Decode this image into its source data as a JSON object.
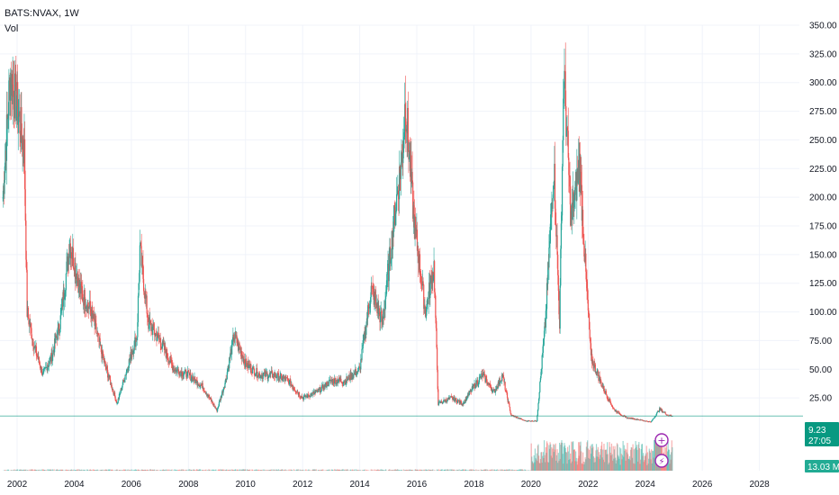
{
  "header": {
    "symbol_label": "BATS:NVAX, 1W",
    "indicator_label": "Vol"
  },
  "colors": {
    "up": "#26a69a",
    "down": "#ef5350",
    "price_badge": "#089981",
    "volume_badge": "#22ab94",
    "grid": "#f0f3fa",
    "marker": "#9c27b0"
  },
  "chart_data": {
    "type": "candlestick",
    "title": "",
    "xlabel": "",
    "ylabel": "",
    "x_ticks": [
      "2002",
      "2004",
      "2006",
      "2008",
      "2010",
      "2012",
      "2014",
      "2016",
      "2018",
      "2020",
      "2022",
      "2024",
      "2026",
      "2028"
    ],
    "y_ticks": [
      "350.00",
      "325.00",
      "300.00",
      "275.00",
      "250.00",
      "225.00",
      "200.00",
      "175.00",
      "150.00",
      "125.00",
      "100.00",
      "75.00",
      "50.00",
      "25.00"
    ],
    "ylim": [
      0,
      350
    ],
    "xlim": [
      2001.4,
      2029.4
    ],
    "grid": true,
    "series": [
      {
        "type": "price",
        "points": [
          [
            2001.5,
            200
          ],
          [
            2001.75,
            305
          ],
          [
            2002.0,
            280
          ],
          [
            2002.25,
            240
          ],
          [
            2002.35,
            100
          ],
          [
            2002.6,
            70
          ],
          [
            2002.9,
            45
          ],
          [
            2003.2,
            60
          ],
          [
            2003.5,
            90
          ],
          [
            2003.85,
            160
          ],
          [
            2004.2,
            120
          ],
          [
            2004.6,
            100
          ],
          [
            2005.0,
            60
          ],
          [
            2005.5,
            20
          ],
          [
            2005.9,
            55
          ],
          [
            2006.2,
            80
          ],
          [
            2006.3,
            155
          ],
          [
            2006.6,
            90
          ],
          [
            2007.0,
            75
          ],
          [
            2007.5,
            50
          ],
          [
            2008.0,
            45
          ],
          [
            2008.5,
            35
          ],
          [
            2009.0,
            14
          ],
          [
            2009.3,
            40
          ],
          [
            2009.6,
            80
          ],
          [
            2010.0,
            55
          ],
          [
            2010.5,
            45
          ],
          [
            2011.0,
            45
          ],
          [
            2011.5,
            40
          ],
          [
            2012.0,
            25
          ],
          [
            2012.5,
            30
          ],
          [
            2013.0,
            40
          ],
          [
            2013.5,
            40
          ],
          [
            2014.0,
            50
          ],
          [
            2014.4,
            120
          ],
          [
            2014.8,
            90
          ],
          [
            2015.2,
            180
          ],
          [
            2015.5,
            240
          ],
          [
            2015.6,
            285
          ],
          [
            2015.9,
            180
          ],
          [
            2016.3,
            100
          ],
          [
            2016.6,
            140
          ],
          [
            2016.75,
            20
          ],
          [
            2017.2,
            25
          ],
          [
            2017.6,
            20
          ],
          [
            2018.0,
            35
          ],
          [
            2018.3,
            45
          ],
          [
            2018.7,
            30
          ],
          [
            2019.0,
            45
          ],
          [
            2019.3,
            10
          ],
          [
            2019.8,
            5
          ],
          [
            2020.2,
            5
          ],
          [
            2020.5,
            90
          ],
          [
            2020.8,
            230
          ],
          [
            2021.0,
            90
          ],
          [
            2021.15,
            310
          ],
          [
            2021.4,
            180
          ],
          [
            2021.7,
            230
          ],
          [
            2021.9,
            140
          ],
          [
            2022.1,
            60
          ],
          [
            2022.5,
            35
          ],
          [
            2022.9,
            15
          ],
          [
            2023.3,
            8
          ],
          [
            2023.8,
            6
          ],
          [
            2024.2,
            4
          ],
          [
            2024.5,
            15
          ],
          [
            2024.8,
            10
          ],
          [
            2024.95,
            9.23
          ]
        ]
      },
      {
        "type": "volume",
        "zero_before": 2020.0,
        "max_after": 2024.5
      }
    ],
    "last_price": "9.23",
    "countdown": "27:05",
    "volume_value": "13.03 M"
  }
}
